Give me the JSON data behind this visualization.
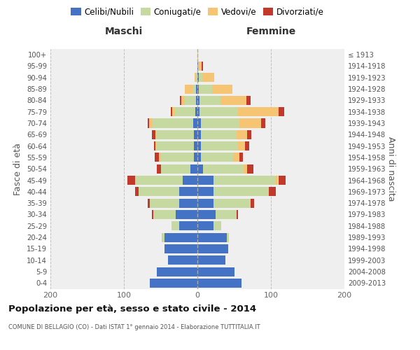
{
  "age_groups": [
    "0-4",
    "5-9",
    "10-14",
    "15-19",
    "20-24",
    "25-29",
    "30-34",
    "35-39",
    "40-44",
    "45-49",
    "50-54",
    "55-59",
    "60-64",
    "65-69",
    "70-74",
    "75-79",
    "80-84",
    "85-89",
    "90-94",
    "95-99",
    "100+"
  ],
  "birth_years": [
    "2009-2013",
    "2004-2008",
    "1999-2003",
    "1994-1998",
    "1989-1993",
    "1984-1988",
    "1979-1983",
    "1974-1978",
    "1969-1973",
    "1964-1968",
    "1959-1963",
    "1954-1958",
    "1949-1953",
    "1944-1948",
    "1939-1943",
    "1934-1938",
    "1929-1933",
    "1924-1928",
    "1919-1923",
    "1914-1918",
    "≤ 1913"
  ],
  "colors": {
    "celibi": "#4472c4",
    "coniugati": "#c5d9a0",
    "vedovi": "#f5c573",
    "divorziati": "#c0392b"
  },
  "maschi": {
    "celibi": [
      65,
      55,
      40,
      45,
      45,
      25,
      30,
      25,
      25,
      20,
      10,
      5,
      5,
      5,
      6,
      3,
      2,
      2,
      0,
      0,
      0
    ],
    "coniugati": [
      0,
      0,
      0,
      0,
      3,
      10,
      30,
      40,
      55,
      65,
      40,
      45,
      50,
      50,
      55,
      28,
      15,
      5,
      2,
      0,
      0
    ],
    "vedovi": [
      0,
      0,
      0,
      0,
      1,
      0,
      0,
      0,
      0,
      0,
      0,
      2,
      2,
      2,
      5,
      3,
      5,
      10,
      2,
      0,
      0
    ],
    "divorziati": [
      0,
      0,
      0,
      0,
      0,
      0,
      2,
      3,
      5,
      10,
      5,
      6,
      2,
      5,
      2,
      2,
      2,
      0,
      0,
      0,
      0
    ]
  },
  "femmine": {
    "celibi": [
      60,
      50,
      38,
      42,
      40,
      22,
      25,
      22,
      22,
      22,
      8,
      5,
      5,
      5,
      5,
      3,
      3,
      2,
      2,
      1,
      0
    ],
    "coniugati": [
      0,
      0,
      0,
      0,
      3,
      10,
      28,
      50,
      75,
      85,
      55,
      44,
      50,
      48,
      52,
      52,
      28,
      18,
      5,
      1,
      0
    ],
    "vedovi": [
      0,
      0,
      0,
      0,
      0,
      0,
      0,
      0,
      0,
      3,
      5,
      8,
      10,
      15,
      30,
      55,
      36,
      28,
      16,
      4,
      1
    ],
    "divorziati": [
      0,
      0,
      0,
      0,
      0,
      0,
      2,
      5,
      10,
      10,
      8,
      5,
      5,
      5,
      5,
      8,
      5,
      0,
      0,
      2,
      0
    ]
  },
  "xlim": 200,
  "title": "Popolazione per età, sesso e stato civile - 2014",
  "subtitle": "COMUNE DI BELLAGIO (CO) - Dati ISTAT 1° gennaio 2014 - Elaborazione TUTTITALIA.IT",
  "ylabel_left": "Fasce di età",
  "ylabel_right": "Anni di nascita",
  "xlabel_maschi": "Maschi",
  "xlabel_femmine": "Femmine",
  "legend_labels": [
    "Celibi/Nubili",
    "Coniugati/e",
    "Vedovi/e",
    "Divorziati/e"
  ],
  "bg_color": "#efefef"
}
